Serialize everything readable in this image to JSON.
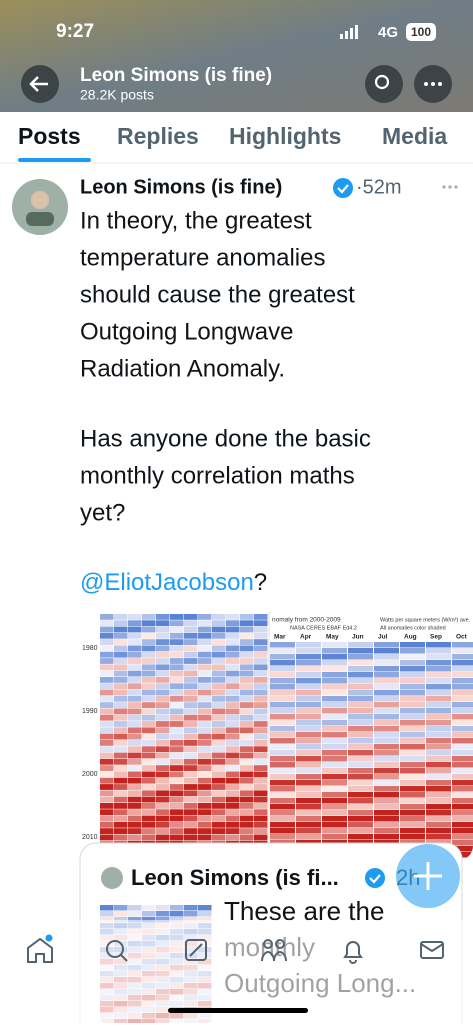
{
  "status": {
    "time": "9:27",
    "network": "4G",
    "battery": "100"
  },
  "header": {
    "name": "Leon Simons (is fine)",
    "posts": "28.2K posts"
  },
  "tabs": [
    "Posts",
    "Replies",
    "Highlights",
    "Media"
  ],
  "tweet": {
    "author": "Leon Simons (is fine)",
    "time": "·52m",
    "paragraphs": [
      [
        "In theory, the greatest",
        "temperature anomalies",
        "should cause the greatest",
        "Outgoing Longwave",
        "Radiation Anomaly."
      ],
      [
        "Has anyone done the basic",
        "monthly correlation maths",
        "yet?"
      ]
    ],
    "mention": "@EliotJacobson",
    "after_mention": "?",
    "image_left": {
      "years": [
        "1980",
        "1990",
        "2000",
        "2010"
      ]
    },
    "image_right": {
      "title": "nomaly from 2000-2009",
      "source": "NASA CERES EBAF Ed4.2",
      "units": "Watts per square meters (W/m²) ave.",
      "note": "All anomalies color shaded",
      "months": [
        "Mar",
        "Apr",
        "May",
        "Jun",
        "Jul",
        "Aug",
        "Sep",
        "Oct"
      ]
    }
  },
  "quote": {
    "author": "Leon Simons (is fi...",
    "time": "2h",
    "lines": [
      "These are the",
      "monthly",
      "Outgoing Long..."
    ]
  }
}
